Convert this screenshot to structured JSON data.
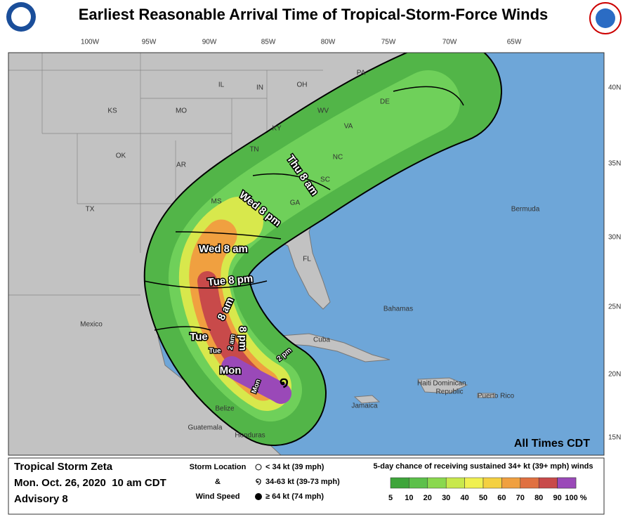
{
  "header": {
    "title": "Earliest Reasonable Arrival Time of Tropical-Storm-Force Winds"
  },
  "map": {
    "longitude_labels": [
      "100W",
      "95W",
      "90W",
      "85W",
      "80W",
      "75W",
      "70W",
      "65W"
    ],
    "latitude_labels": [
      "40N",
      "35N",
      "30N",
      "25N",
      "20N",
      "15N"
    ],
    "place_labels": [
      "PA",
      "KS",
      "MO",
      "IL",
      "IN",
      "OH",
      "WV",
      "VA",
      "KY",
      "DE",
      "NC",
      "TN",
      "OK",
      "AR",
      "SC",
      "TX",
      "MS",
      "GA",
      "FL",
      "Bermuda",
      "Bahamas",
      "Cuba",
      "Mexico",
      "Jamaica",
      "Haiti",
      "Dominican",
      "Republic",
      "Puerto Rico",
      "Belize",
      "Guatemala",
      "Honduras"
    ],
    "time_labels": [
      "Thu 8 am",
      "Wed 8 pm",
      "Wed 8 am",
      "Tue 8 pm",
      "8 am",
      "Tue",
      "2 am",
      "Tue",
      "8 pm",
      "2 pm",
      "Mon",
      "Mon"
    ],
    "note": "All Times CDT"
  },
  "footer": {
    "storm": "Tropical Storm Zeta",
    "date": "Mon. Oct. 26, 2020  10 am CDT",
    "advisory": "Advisory 8",
    "key_title_1": "Storm Location",
    "key_and": "&",
    "key_title_2": "Wind Speed",
    "key_items": [
      "< 34 kt (39 mph)",
      "34-63 kt (39-73 mph)",
      "≥ 64 kt (74 mph)"
    ],
    "probability_title": "5-day chance of receiving sustained 34+ kt (39+ mph) winds",
    "probability_scale": [
      "5",
      "10",
      "20",
      "30",
      "40",
      "50",
      "60",
      "70",
      "80",
      "90",
      "100 %"
    ]
  }
}
